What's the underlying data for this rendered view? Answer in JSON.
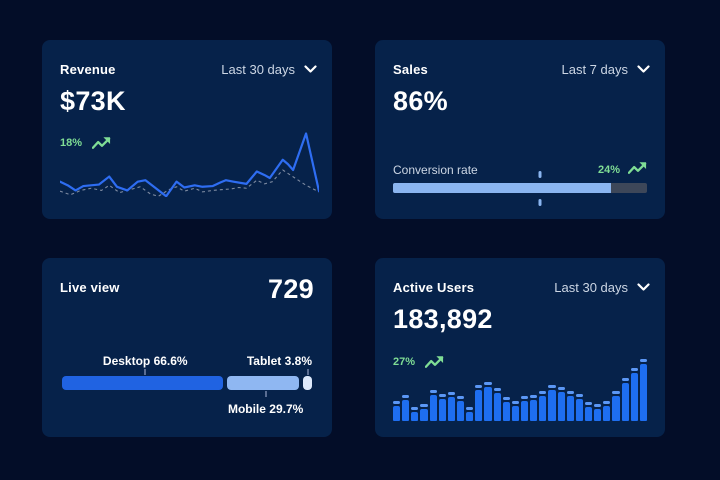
{
  "theme": {
    "page_bg": "#030d28",
    "card_bg": "#06224a",
    "text_primary": "#ffffff",
    "text_secondary": "#ccd6e4",
    "accent_green": "#7fdd95",
    "line_blue": "#2e6df2",
    "line_dashed": "#929db1",
    "bar_blue": "#1e6ef0",
    "bar_cap": "#5b97f5",
    "progress_fill": "#8ab5f0",
    "progress_track": "#3d4759",
    "tick_color": "#5a6d92"
  },
  "icons": {
    "dropdown": "chevron-down",
    "trend": "trending-up"
  },
  "revenue": {
    "title": "Revenue",
    "period": "Last 30 days",
    "value": "$73K",
    "delta": "18%",
    "trend": "up",
    "line": [
      [
        0,
        79
      ],
      [
        3,
        84
      ],
      [
        6,
        91
      ],
      [
        9,
        85
      ],
      [
        12,
        84
      ],
      [
        15,
        83
      ],
      [
        19,
        72
      ],
      [
        22,
        86
      ],
      [
        26,
        91
      ],
      [
        30,
        79
      ],
      [
        33,
        77
      ],
      [
        37,
        88
      ],
      [
        41,
        99
      ],
      [
        45,
        79
      ],
      [
        48,
        87
      ],
      [
        52,
        84
      ],
      [
        55,
        86
      ],
      [
        59,
        85
      ],
      [
        62,
        80
      ],
      [
        64,
        77
      ],
      [
        67,
        79
      ],
      [
        72,
        82
      ],
      [
        76,
        65
      ],
      [
        79,
        70
      ],
      [
        81,
        74
      ],
      [
        86,
        49
      ],
      [
        88,
        55
      ],
      [
        90,
        63
      ],
      [
        95,
        13
      ],
      [
        100,
        92
      ]
    ],
    "baseline": [
      [
        0,
        92
      ],
      [
        4,
        97
      ],
      [
        8,
        91
      ],
      [
        12,
        88
      ],
      [
        16,
        91
      ],
      [
        19,
        84
      ],
      [
        23,
        94
      ],
      [
        27,
        90
      ],
      [
        31,
        86
      ],
      [
        35,
        96
      ],
      [
        38,
        99
      ],
      [
        42,
        90
      ],
      [
        45,
        86
      ],
      [
        48,
        92
      ],
      [
        52,
        88
      ],
      [
        55,
        93
      ],
      [
        59,
        91
      ],
      [
        62,
        90
      ],
      [
        66,
        89
      ],
      [
        69,
        87
      ],
      [
        72,
        88
      ],
      [
        76,
        77
      ],
      [
        79,
        82
      ],
      [
        82,
        79
      ],
      [
        86,
        63
      ],
      [
        89,
        70
      ],
      [
        92,
        77
      ],
      [
        95,
        84
      ],
      [
        100,
        93
      ]
    ]
  },
  "sales": {
    "title": "Sales",
    "period": "Last 7 days",
    "value": "86%",
    "metric_label": "Conversion rate",
    "delta": "24%",
    "trend": "up",
    "progress_pct": 86,
    "marker_pct": 58
  },
  "live_view": {
    "title": "Live view",
    "value": "729",
    "segments": [
      {
        "name": "desktop",
        "label": "Desktop 66.6%",
        "pct": 66.6,
        "color": "#2063e2",
        "label_side": "top"
      },
      {
        "name": "mobile",
        "label": "Mobile 29.7%",
        "pct": 29.7,
        "color": "#8fb7f2",
        "label_side": "bottom"
      },
      {
        "name": "tablet",
        "label": "Tablet 3.8%",
        "pct": 3.8,
        "color": "#dde9fb",
        "label_side": "top"
      }
    ]
  },
  "active_users": {
    "title": "Active Users",
    "period": "Last 30 days",
    "value": "183,892",
    "delta": "27%",
    "trend": "up",
    "bars": [
      33,
      42,
      22,
      27,
      50,
      43,
      47,
      40,
      22,
      58,
      63,
      53,
      38,
      33,
      40,
      42,
      48,
      58,
      55,
      48,
      43,
      30,
      28,
      33,
      48,
      70,
      85,
      100
    ]
  },
  "chart_data": [
    {
      "type": "line",
      "title": "Revenue sparkline (Last 30 days)",
      "legend": [
        "current",
        "previous"
      ],
      "note": "unlabeled sparkline, values relative 0-100",
      "series": [
        {
          "name": "current",
          "values": [
            21,
            16,
            9,
            15,
            16,
            17,
            28,
            14,
            9,
            21,
            23,
            12,
            1,
            21,
            13,
            16,
            14,
            15,
            20,
            23,
            21,
            18,
            35,
            30,
            26,
            51,
            45,
            37,
            87,
            8
          ]
        },
        {
          "name": "previous",
          "values": [
            8,
            3,
            9,
            12,
            9,
            16,
            6,
            10,
            14,
            4,
            1,
            10,
            14,
            8,
            12,
            7,
            9,
            10,
            11,
            13,
            12,
            23,
            18,
            21,
            37,
            30,
            23,
            16,
            7
          ]
        }
      ]
    },
    {
      "type": "bar",
      "title": "Sales conversion rate (Last 7 days)",
      "values": [
        86
      ],
      "marker_pct": 58,
      "ylim": [
        0,
        100
      ]
    },
    {
      "type": "bar",
      "title": "Live view device share",
      "categories": [
        "Desktop",
        "Mobile",
        "Tablet"
      ],
      "values": [
        66.6,
        29.7,
        3.8
      ],
      "ylim": [
        0,
        100
      ]
    },
    {
      "type": "bar",
      "title": "Active Users (Last 30 days)",
      "note": "unlabeled bars, values relative 0-100",
      "values": [
        33,
        42,
        22,
        27,
        50,
        43,
        47,
        40,
        22,
        58,
        63,
        53,
        38,
        33,
        40,
        42,
        48,
        58,
        55,
        48,
        43,
        30,
        28,
        33,
        48,
        70,
        85,
        100
      ]
    }
  ]
}
